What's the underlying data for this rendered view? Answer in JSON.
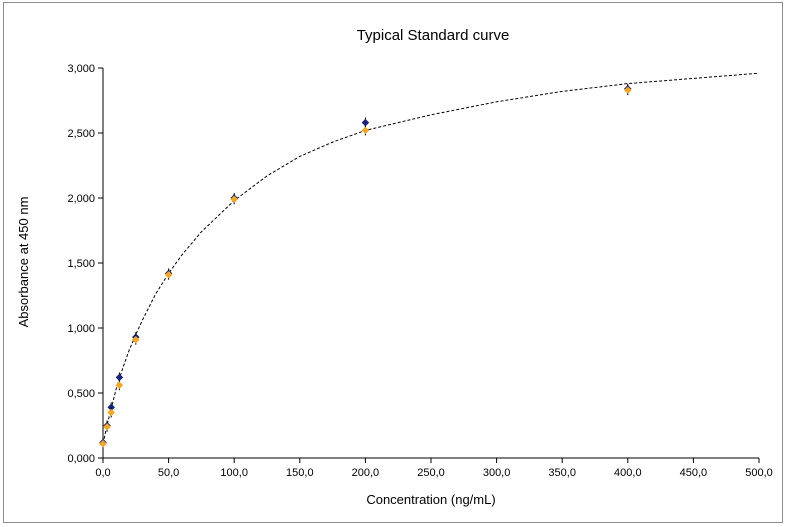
{
  "chart_data": {
    "type": "scatter",
    "title": "Typical Standard curve",
    "xlabel": "Concentration (ng/mL)",
    "ylabel": "Absorbance at 450 nm",
    "xlim": [
      0,
      500
    ],
    "ylim": [
      0,
      3
    ],
    "x_ticks": [
      0,
      50,
      100,
      150,
      200,
      250,
      300,
      350,
      400,
      450,
      500
    ],
    "y_ticks": [
      0,
      0.5,
      1,
      1.5,
      2,
      2.5,
      3
    ],
    "x_tick_labels": [
      "0,0",
      "50,0",
      "100,0",
      "150,0",
      "200,0",
      "250,0",
      "300,0",
      "350,0",
      "400,0",
      "450,0",
      "500,0"
    ],
    "y_tick_labels": [
      "0,000",
      "0,500",
      "1,000",
      "1,500",
      "2,000",
      "2,500",
      "3,000"
    ],
    "grid": false,
    "series": [
      {
        "role": "replicate-1",
        "color": "#1a237e",
        "marker": "diamond",
        "x": [
          0,
          3.125,
          6.25,
          12.5,
          25,
          50,
          100,
          200,
          400
        ],
        "y": [
          0.12,
          0.25,
          0.39,
          0.62,
          0.93,
          1.42,
          2.0,
          2.58,
          2.84
        ]
      },
      {
        "role": "replicate-2",
        "color": "#f5a623",
        "marker": "diamond",
        "x": [
          0,
          3.125,
          6.25,
          12.5,
          25,
          50,
          100,
          200,
          400
        ],
        "y": [
          0.11,
          0.24,
          0.35,
          0.56,
          0.91,
          1.41,
          1.99,
          2.52,
          2.83
        ]
      }
    ],
    "fit_curve": {
      "style": "dashed",
      "color": "#000000",
      "x": [
        0,
        2,
        4,
        6,
        8,
        10,
        12.5,
        15,
        20,
        25,
        30,
        40,
        50,
        60,
        75,
        100,
        125,
        150,
        175,
        200,
        250,
        300,
        350,
        400,
        450,
        500
      ],
      "y": [
        0.11,
        0.2,
        0.29,
        0.37,
        0.45,
        0.53,
        0.61,
        0.69,
        0.83,
        0.95,
        1.06,
        1.26,
        1.42,
        1.56,
        1.74,
        1.98,
        2.17,
        2.32,
        2.43,
        2.52,
        2.64,
        2.74,
        2.82,
        2.88,
        2.92,
        2.96
      ]
    }
  }
}
